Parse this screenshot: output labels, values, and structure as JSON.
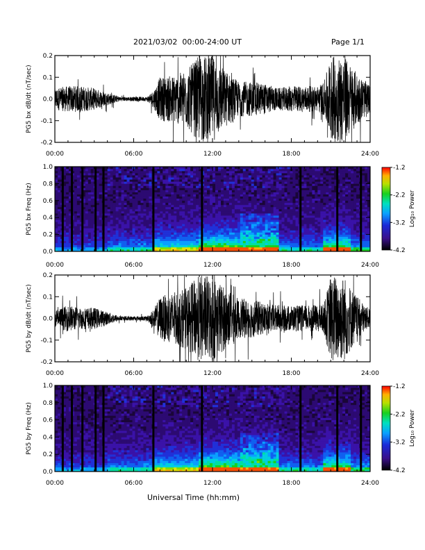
{
  "header": {
    "title": "2021/03/02  00:00-24:00 UT",
    "page": "Page 1/1"
  },
  "xlabel": "Universal Time (hh:mm)",
  "chart_data": [
    {
      "type": "line",
      "ylabel": "PG5 bx dB/dt (nT/sec)",
      "xlim": [
        0,
        24
      ],
      "ylim": [
        -0.2,
        0.2
      ],
      "xticks": [
        "00:00",
        "06:00",
        "12:00",
        "18:00",
        "24:00"
      ],
      "yticks": [
        "-0.2",
        "-0.1",
        "0.0",
        "0.1",
        "0.2"
      ],
      "envelope_hours": [
        0,
        1,
        2,
        3,
        4,
        5,
        6,
        7,
        7.5,
        8,
        9,
        10,
        11,
        12,
        13,
        14,
        15,
        16,
        17,
        18,
        19,
        20,
        20.5,
        21,
        22,
        23,
        24
      ],
      "envelope_amplitude": [
        0.05,
        0.06,
        0.06,
        0.05,
        0.03,
        0.01,
        0.01,
        0.01,
        0.04,
        0.1,
        0.11,
        0.13,
        0.2,
        0.2,
        0.13,
        0.08,
        0.08,
        0.07,
        0.05,
        0.06,
        0.06,
        0.06,
        0.08,
        0.2,
        0.2,
        0.12,
        0.06
      ],
      "series": [
        {
          "values": []
        }
      ]
    },
    {
      "type": "heatmap",
      "ylabel": "PG5 bx Freq (Hz)",
      "xlim": [
        0,
        24
      ],
      "ylim": [
        0.0,
        1.0
      ],
      "xticks": [
        "00:00",
        "06:00",
        "12:00",
        "18:00",
        "24:00"
      ],
      "yticks": [
        "0.0",
        "0.2",
        "0.4",
        "0.6",
        "0.8",
        "1.0"
      ],
      "colorbar": {
        "label": "Log₁₀ Power",
        "range": [
          -4.2,
          -1.2
        ],
        "ticks": [
          "-1.2",
          "-2.2",
          "-3.2",
          "-4.2"
        ]
      },
      "data_gap_hours": [
        0.6,
        1.3,
        2.1,
        3.1,
        3.7,
        7.5,
        11.2,
        18.7,
        21.5,
        23.3
      ]
    },
    {
      "type": "line",
      "ylabel": "PG5 by dB/dt (nT/sec)",
      "xlim": [
        0,
        24
      ],
      "ylim": [
        -0.2,
        0.2
      ],
      "xticks": [
        "00:00",
        "06:00",
        "12:00",
        "18:00",
        "24:00"
      ],
      "yticks": [
        "-0.2",
        "-0.1",
        "0.0",
        "0.1",
        "0.2"
      ],
      "envelope_hours": [
        0,
        1,
        2,
        3,
        4,
        5,
        6,
        7,
        7.5,
        8,
        9,
        10,
        11,
        12,
        13,
        14,
        15,
        16,
        17,
        18,
        19,
        20,
        20.5,
        21,
        22,
        23,
        24
      ],
      "envelope_amplitude": [
        0.04,
        0.06,
        0.05,
        0.05,
        0.03,
        0.01,
        0.01,
        0.01,
        0.04,
        0.1,
        0.12,
        0.14,
        0.2,
        0.2,
        0.14,
        0.09,
        0.09,
        0.07,
        0.06,
        0.06,
        0.06,
        0.06,
        0.07,
        0.2,
        0.2,
        0.1,
        0.04
      ],
      "series": [
        {
          "values": []
        }
      ]
    },
    {
      "type": "heatmap",
      "ylabel": "PG5 by Freq (Hz)",
      "xlim": [
        0,
        24
      ],
      "ylim": [
        0.0,
        1.0
      ],
      "xticks": [
        "00:00",
        "06:00",
        "12:00",
        "18:00",
        "24:00"
      ],
      "yticks": [
        "0.0",
        "0.2",
        "0.4",
        "0.6",
        "0.8",
        "1.0"
      ],
      "colorbar": {
        "label": "Log₁₀ Power",
        "range": [
          -4.2,
          -1.2
        ],
        "ticks": [
          "-1.2",
          "-2.2",
          "-3.2",
          "-4.2"
        ]
      },
      "data_gap_hours": [
        0.6,
        1.3,
        2.1,
        3.1,
        3.7,
        7.5,
        11.2,
        18.7,
        21.5,
        23.3
      ]
    }
  ]
}
